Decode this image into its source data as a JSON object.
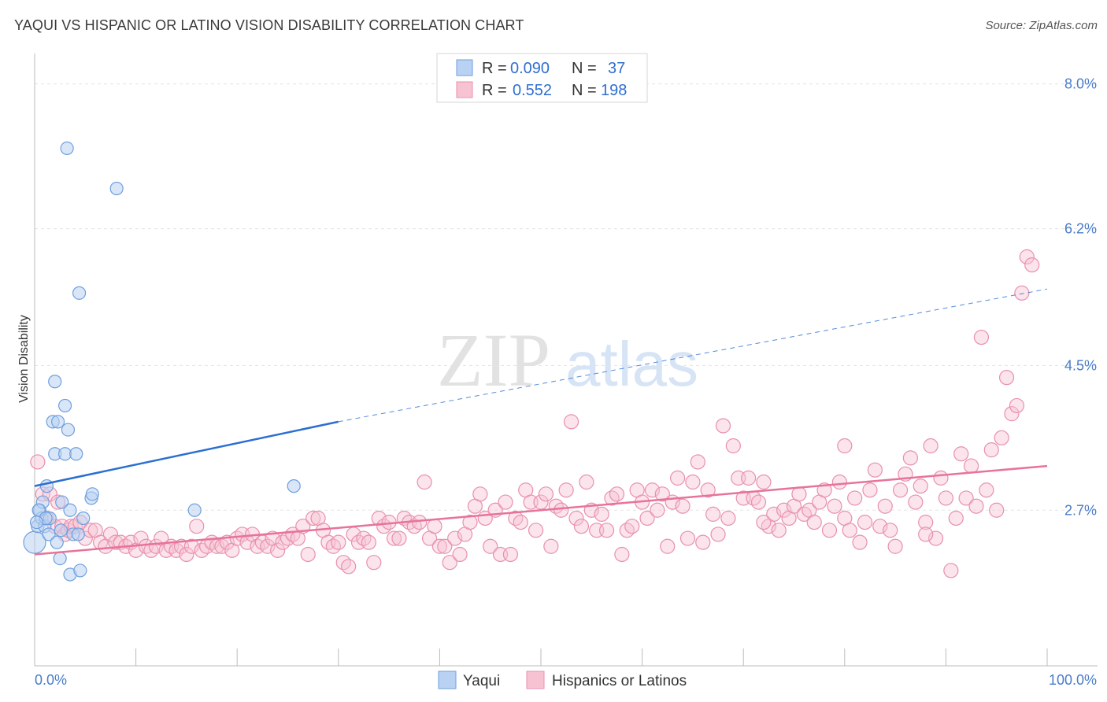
{
  "header": {
    "title": "YAQUI VS HISPANIC OR LATINO VISION DISABILITY CORRELATION CHART",
    "source": "Source: ZipAtlas.com"
  },
  "watermark": {
    "zip": "ZIP",
    "atlas": "atlas"
  },
  "colors": {
    "yaqui_fill": "#b9d2f3",
    "yaqui_stroke": "#6f9fdd",
    "yaqui_line": "#2a6fd1",
    "hisp_fill": "#f7c3d3",
    "hisp_stroke": "#e890ad",
    "hisp_line": "#e8739a",
    "grid": "#e3e3e3",
    "tick_label": "#4a7cc9"
  },
  "legend": {
    "rows": [
      {
        "r_label": "R =",
        "r_value": "0.090",
        "n_label": "N =",
        "n_value": "37"
      },
      {
        "r_label": "R =",
        "r_value": "0.552",
        "n_label": "N =",
        "n_value": "198"
      }
    ]
  },
  "chart_data": {
    "type": "scatter",
    "title": "YAQUI VS HISPANIC OR LATINO VISION DISABILITY CORRELATION CHART",
    "ylabel": "Vision Disability",
    "xlabel": "",
    "xlim": [
      0,
      100
    ],
    "ylim": [
      1.0,
      8.3
    ],
    "x_tick_labels": [
      "0.0%",
      "100.0%"
    ],
    "y_ticks": [
      2.7,
      4.5,
      6.2,
      8.0
    ],
    "y_tick_labels": [
      "2.7%",
      "4.5%",
      "6.2%",
      "8.0%"
    ],
    "grid": true,
    "legend_position": "top-center",
    "series": [
      {
        "name": "Yaqui",
        "r": 0.09,
        "n": 37,
        "trend": {
          "x0": 0,
          "y0": 3.0,
          "x1": 30,
          "y1": 3.8,
          "x_dash_end": 100,
          "y_dash_end": 5.45
        },
        "points": [
          [
            0.0,
            2.3
          ],
          [
            0.3,
            2.5
          ],
          [
            0.5,
            2.7
          ],
          [
            0.7,
            2.6
          ],
          [
            0.8,
            2.8
          ],
          [
            1.0,
            2.5
          ],
          [
            1.2,
            3.0
          ],
          [
            1.4,
            2.4
          ],
          [
            1.5,
            2.6
          ],
          [
            1.8,
            3.8
          ],
          [
            2.0,
            3.4
          ],
          [
            2.0,
            4.3
          ],
          [
            2.2,
            2.3
          ],
          [
            2.3,
            3.8
          ],
          [
            2.5,
            2.1
          ],
          [
            2.7,
            2.8
          ],
          [
            3.0,
            4.0
          ],
          [
            3.0,
            3.4
          ],
          [
            3.2,
            7.2
          ],
          [
            3.3,
            3.7
          ],
          [
            3.5,
            1.9
          ],
          [
            3.5,
            2.7
          ],
          [
            3.8,
            2.4
          ],
          [
            4.1,
            3.4
          ],
          [
            4.3,
            2.4
          ],
          [
            4.4,
            5.4
          ],
          [
            4.5,
            1.95
          ],
          [
            4.8,
            2.6
          ],
          [
            5.6,
            2.85
          ],
          [
            5.7,
            2.9
          ],
          [
            8.1,
            6.7
          ],
          [
            15.8,
            2.7
          ],
          [
            25.6,
            3.0
          ],
          [
            0.4,
            2.7
          ],
          [
            1.1,
            2.6
          ],
          [
            2.6,
            2.45
          ],
          [
            0.2,
            2.55
          ]
        ]
      },
      {
        "name": "Hispanics or Latinos",
        "r": 0.552,
        "n": 198,
        "trend": {
          "x0": 0,
          "y0": 2.15,
          "x1": 100,
          "y1": 3.25
        },
        "points": [
          [
            0.3,
            3.3
          ],
          [
            0.8,
            2.9
          ],
          [
            1.2,
            2.6
          ],
          [
            1.5,
            2.9
          ],
          [
            2.0,
            2.5
          ],
          [
            2.3,
            2.8
          ],
          [
            2.7,
            2.5
          ],
          [
            3.0,
            2.4
          ],
          [
            3.3,
            2.45
          ],
          [
            3.6,
            2.5
          ],
          [
            4.0,
            2.5
          ],
          [
            4.5,
            2.55
          ],
          [
            5.0,
            2.35
          ],
          [
            5.5,
            2.45
          ],
          [
            6.0,
            2.45
          ],
          [
            6.5,
            2.3
          ],
          [
            7.0,
            2.25
          ],
          [
            7.5,
            2.4
          ],
          [
            8.0,
            2.3
          ],
          [
            8.5,
            2.3
          ],
          [
            9.0,
            2.25
          ],
          [
            9.5,
            2.3
          ],
          [
            10.0,
            2.2
          ],
          [
            10.5,
            2.35
          ],
          [
            11.0,
            2.25
          ],
          [
            11.5,
            2.2
          ],
          [
            12.0,
            2.25
          ],
          [
            12.5,
            2.35
          ],
          [
            13.0,
            2.2
          ],
          [
            13.5,
            2.25
          ],
          [
            14.0,
            2.2
          ],
          [
            14.5,
            2.25
          ],
          [
            15.0,
            2.15
          ],
          [
            15.5,
            2.25
          ],
          [
            16.0,
            2.5
          ],
          [
            16.5,
            2.2
          ],
          [
            17.0,
            2.25
          ],
          [
            17.5,
            2.3
          ],
          [
            18.0,
            2.25
          ],
          [
            18.5,
            2.25
          ],
          [
            19.0,
            2.3
          ],
          [
            19.5,
            2.2
          ],
          [
            20.0,
            2.35
          ],
          [
            20.5,
            2.4
          ],
          [
            21.0,
            2.3
          ],
          [
            21.5,
            2.4
          ],
          [
            22.0,
            2.25
          ],
          [
            22.5,
            2.3
          ],
          [
            23.0,
            2.25
          ],
          [
            23.5,
            2.35
          ],
          [
            24.0,
            2.2
          ],
          [
            24.5,
            2.3
          ],
          [
            25.0,
            2.35
          ],
          [
            25.5,
            2.4
          ],
          [
            26.0,
            2.35
          ],
          [
            26.5,
            2.5
          ],
          [
            27.0,
            2.15
          ],
          [
            27.5,
            2.6
          ],
          [
            28.0,
            2.6
          ],
          [
            28.5,
            2.45
          ],
          [
            29.0,
            2.3
          ],
          [
            29.5,
            2.25
          ],
          [
            30.0,
            2.3
          ],
          [
            30.5,
            2.05
          ],
          [
            31.0,
            2.0
          ],
          [
            31.5,
            2.4
          ],
          [
            32.0,
            2.3
          ],
          [
            32.5,
            2.35
          ],
          [
            33.0,
            2.3
          ],
          [
            33.5,
            2.05
          ],
          [
            34.0,
            2.6
          ],
          [
            34.5,
            2.5
          ],
          [
            35.0,
            2.55
          ],
          [
            35.5,
            2.35
          ],
          [
            36.0,
            2.35
          ],
          [
            36.5,
            2.6
          ],
          [
            37.0,
            2.55
          ],
          [
            37.5,
            2.5
          ],
          [
            38.0,
            2.55
          ],
          [
            38.5,
            3.05
          ],
          [
            39.0,
            2.35
          ],
          [
            39.5,
            2.5
          ],
          [
            40.0,
            2.25
          ],
          [
            40.5,
            2.25
          ],
          [
            41.0,
            2.05
          ],
          [
            41.5,
            2.35
          ],
          [
            42.0,
            2.15
          ],
          [
            42.5,
            2.4
          ],
          [
            43.0,
            2.55
          ],
          [
            43.5,
            2.75
          ],
          [
            44.0,
            2.9
          ],
          [
            44.5,
            2.6
          ],
          [
            45.0,
            2.25
          ],
          [
            45.5,
            2.7
          ],
          [
            46.0,
            2.15
          ],
          [
            46.5,
            2.8
          ],
          [
            47.0,
            2.15
          ],
          [
            47.5,
            2.6
          ],
          [
            48.0,
            2.55
          ],
          [
            48.5,
            2.95
          ],
          [
            49.0,
            2.8
          ],
          [
            49.5,
            2.45
          ],
          [
            50.0,
            2.8
          ],
          [
            50.5,
            2.9
          ],
          [
            51.0,
            2.25
          ],
          [
            51.5,
            2.75
          ],
          [
            52.0,
            2.7
          ],
          [
            52.5,
            2.95
          ],
          [
            53.0,
            3.8
          ],
          [
            53.5,
            2.6
          ],
          [
            54.0,
            2.5
          ],
          [
            54.5,
            3.05
          ],
          [
            55.0,
            2.7
          ],
          [
            55.5,
            2.45
          ],
          [
            56.0,
            2.65
          ],
          [
            56.5,
            2.45
          ],
          [
            57.0,
            2.85
          ],
          [
            57.5,
            2.9
          ],
          [
            58.0,
            2.15
          ],
          [
            58.5,
            2.45
          ],
          [
            59.0,
            2.5
          ],
          [
            59.5,
            2.95
          ],
          [
            60.0,
            2.8
          ],
          [
            60.5,
            2.6
          ],
          [
            61.0,
            2.95
          ],
          [
            61.5,
            2.7
          ],
          [
            62.0,
            2.9
          ],
          [
            62.5,
            2.25
          ],
          [
            63.0,
            2.8
          ],
          [
            63.5,
            3.1
          ],
          [
            64.0,
            2.75
          ],
          [
            64.5,
            2.35
          ],
          [
            65.0,
            3.05
          ],
          [
            65.5,
            3.3
          ],
          [
            66.0,
            2.3
          ],
          [
            66.5,
            2.95
          ],
          [
            67.0,
            2.65
          ],
          [
            67.5,
            2.4
          ],
          [
            68.0,
            3.75
          ],
          [
            68.5,
            2.6
          ],
          [
            69.0,
            3.5
          ],
          [
            69.5,
            3.1
          ],
          [
            70.0,
            2.85
          ],
          [
            70.5,
            3.1
          ],
          [
            71.0,
            2.85
          ],
          [
            71.5,
            2.8
          ],
          [
            72.0,
            3.05
          ],
          [
            72.5,
            2.5
          ],
          [
            73.0,
            2.65
          ],
          [
            73.5,
            2.45
          ],
          [
            74.0,
            2.7
          ],
          [
            74.5,
            2.6
          ],
          [
            75.0,
            2.75
          ],
          [
            75.5,
            2.9
          ],
          [
            76.0,
            2.65
          ],
          [
            76.5,
            2.7
          ],
          [
            77.0,
            2.55
          ],
          [
            77.5,
            2.8
          ],
          [
            78.0,
            2.95
          ],
          [
            78.5,
            2.45
          ],
          [
            79.0,
            2.75
          ],
          [
            79.5,
            3.05
          ],
          [
            80.0,
            2.6
          ],
          [
            80.5,
            2.45
          ],
          [
            81.0,
            2.85
          ],
          [
            81.5,
            2.3
          ],
          [
            82.0,
            2.55
          ],
          [
            82.5,
            2.95
          ],
          [
            83.0,
            3.2
          ],
          [
            83.5,
            2.5
          ],
          [
            84.0,
            2.75
          ],
          [
            84.5,
            2.45
          ],
          [
            85.0,
            2.25
          ],
          [
            85.5,
            2.95
          ],
          [
            86.0,
            3.15
          ],
          [
            86.5,
            3.35
          ],
          [
            87.0,
            2.8
          ],
          [
            87.5,
            3.0
          ],
          [
            88.0,
            2.55
          ],
          [
            88.5,
            3.5
          ],
          [
            89.0,
            2.35
          ],
          [
            89.5,
            3.1
          ],
          [
            90.0,
            2.85
          ],
          [
            90.5,
            1.95
          ],
          [
            91.0,
            2.6
          ],
          [
            91.5,
            3.4
          ],
          [
            92.0,
            2.85
          ],
          [
            92.5,
            3.25
          ],
          [
            93.0,
            2.75
          ],
          [
            93.5,
            4.85
          ],
          [
            94.0,
            2.95
          ],
          [
            94.5,
            3.45
          ],
          [
            95.0,
            2.7
          ],
          [
            95.5,
            3.6
          ],
          [
            96.0,
            4.35
          ],
          [
            96.5,
            3.9
          ],
          [
            97.0,
            4.0
          ],
          [
            97.5,
            5.4
          ],
          [
            98.0,
            5.85
          ],
          [
            98.5,
            5.75
          ],
          [
            88.0,
            2.4
          ],
          [
            72.0,
            2.55
          ],
          [
            80.0,
            3.5
          ]
        ]
      }
    ]
  },
  "bottom_legend": {
    "items": [
      {
        "label": "Yaqui"
      },
      {
        "label": "Hispanics or Latinos"
      }
    ]
  }
}
